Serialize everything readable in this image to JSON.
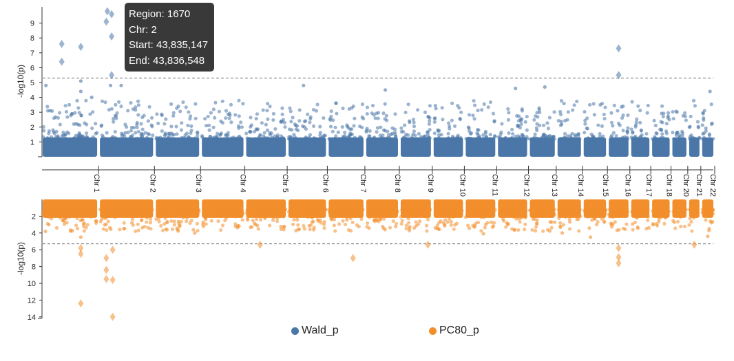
{
  "chart_data": {
    "type": "scatter",
    "subtype": "miami-plot",
    "ylabel_top": "-log10(p)",
    "ylabel_bottom": "-log10(p)",
    "threshold": 5.3,
    "top_yticks": [
      1,
      2,
      3,
      4,
      5,
      6,
      7,
      8,
      9
    ],
    "bottom_yticks": [
      2,
      4,
      6,
      8,
      10,
      12,
      14
    ],
    "top_ylim": [
      0,
      10
    ],
    "bottom_ylim": [
      0,
      14
    ],
    "chromosomes": [
      {
        "label": "Chr 1",
        "size": 249
      },
      {
        "label": "Chr 2",
        "size": 243
      },
      {
        "label": "Chr 3",
        "size": 198
      },
      {
        "label": "Chr 4",
        "size": 190
      },
      {
        "label": "Chr 5",
        "size": 181
      },
      {
        "label": "Chr 6",
        "size": 171
      },
      {
        "label": "Chr 7",
        "size": 159
      },
      {
        "label": "Chr 8",
        "size": 145
      },
      {
        "label": "Chr 9",
        "size": 138
      },
      {
        "label": "Chr 10",
        "size": 134
      },
      {
        "label": "Chr 11",
        "size": 135
      },
      {
        "label": "Chr 12",
        "size": 133
      },
      {
        "label": "Chr 13",
        "size": 114
      },
      {
        "label": "Chr 14",
        "size": 107
      },
      {
        "label": "Chr 15",
        "size": 102
      },
      {
        "label": "Chr 16",
        "size": 90
      },
      {
        "label": "Chr 17",
        "size": 83
      },
      {
        "label": "Chr 18",
        "size": 80
      },
      {
        "label": "Chr 20",
        "size": 64
      },
      {
        "label": "Chr 21",
        "size": 47
      },
      {
        "label": "Chr 22",
        "size": 51
      }
    ],
    "series": [
      {
        "name": "Wald_p",
        "color": "#4a77a8",
        "significant": [
          {
            "chr": 0,
            "pos": 0.35,
            "y": 7.6
          },
          {
            "chr": 0,
            "pos": 0.35,
            "y": 6.4
          },
          {
            "chr": 0,
            "pos": 0.7,
            "y": 7.4
          },
          {
            "chr": 1,
            "pos": 0.14,
            "y": 9.8
          },
          {
            "chr": 1,
            "pos": 0.12,
            "y": 9.1
          },
          {
            "chr": 1,
            "pos": 0.22,
            "y": 9.6
          },
          {
            "chr": 1,
            "pos": 0.22,
            "y": 8.1
          },
          {
            "chr": 1,
            "pos": 0.22,
            "y": 5.5
          },
          {
            "chr": 15,
            "pos": 0.5,
            "y": 7.3
          },
          {
            "chr": 15,
            "pos": 0.5,
            "y": 5.5
          }
        ],
        "peaks": [
          {
            "chr": 0,
            "pos": 0.06,
            "y": 4.8
          },
          {
            "chr": 0,
            "pos": 0.7,
            "y": 5.1
          },
          {
            "chr": 0,
            "pos": 0.7,
            "y": 4.4
          },
          {
            "chr": 0,
            "pos": 0.9,
            "y": 4.0
          },
          {
            "chr": 1,
            "pos": 0.2,
            "y": 4.8
          },
          {
            "chr": 1,
            "pos": 0.4,
            "y": 4.8
          },
          {
            "chr": 5,
            "pos": 0.4,
            "y": 4.8
          },
          {
            "chr": 7,
            "pos": 0.6,
            "y": 4.5
          },
          {
            "chr": 12,
            "pos": 0.6,
            "y": 4.7
          },
          {
            "chr": 11,
            "pos": 0.6,
            "y": 4.6
          },
          {
            "chr": 20,
            "pos": 0.7,
            "y": 4.4
          }
        ]
      },
      {
        "name": "PC80_p",
        "color": "#f28e2b",
        "significant": [
          {
            "chr": 0,
            "pos": 0.7,
            "y": 12.4
          },
          {
            "chr": 0,
            "pos": 0.7,
            "y": 6.5
          },
          {
            "chr": 0,
            "pos": 0.7,
            "y": 5.8
          },
          {
            "chr": 1,
            "pos": 0.12,
            "y": 7.0
          },
          {
            "chr": 1,
            "pos": 0.12,
            "y": 8.4
          },
          {
            "chr": 1,
            "pos": 0.12,
            "y": 9.5
          },
          {
            "chr": 1,
            "pos": 0.24,
            "y": 6.0
          },
          {
            "chr": 1,
            "pos": 0.24,
            "y": 9.6
          },
          {
            "chr": 1,
            "pos": 0.24,
            "y": 14.0
          },
          {
            "chr": 4,
            "pos": 0.35,
            "y": 5.4
          },
          {
            "chr": 6,
            "pos": 0.7,
            "y": 7.0
          },
          {
            "chr": 8,
            "pos": 0.9,
            "y": 5.4
          },
          {
            "chr": 15,
            "pos": 0.5,
            "y": 5.8
          },
          {
            "chr": 15,
            "pos": 0.5,
            "y": 6.9
          },
          {
            "chr": 15,
            "pos": 0.5,
            "y": 7.6
          },
          {
            "chr": 19,
            "pos": 0.5,
            "y": 5.4
          }
        ],
        "peaks": [
          {
            "chr": 0,
            "pos": 0.7,
            "y": 4.5
          },
          {
            "chr": 0,
            "pos": 0.05,
            "y": 3.8
          },
          {
            "chr": 2,
            "pos": 0.9,
            "y": 4.0
          },
          {
            "chr": 14,
            "pos": 0.3,
            "y": 4.5
          },
          {
            "chr": 13,
            "pos": 0.2,
            "y": 4.0
          },
          {
            "chr": 20,
            "pos": 0.5,
            "y": 4.4
          },
          {
            "chr": 10,
            "pos": 0.6,
            "y": 4.1
          }
        ]
      }
    ],
    "tooltip": {
      "region": "Region: 1670",
      "chr": "Chr: 2",
      "start": "Start: 43,835,147",
      "end": "End: 43,836,548"
    }
  },
  "legend": [
    {
      "label": "Wald_p",
      "color": "#4a77a8"
    },
    {
      "label": "PC80_p",
      "color": "#f28e2b"
    }
  ]
}
